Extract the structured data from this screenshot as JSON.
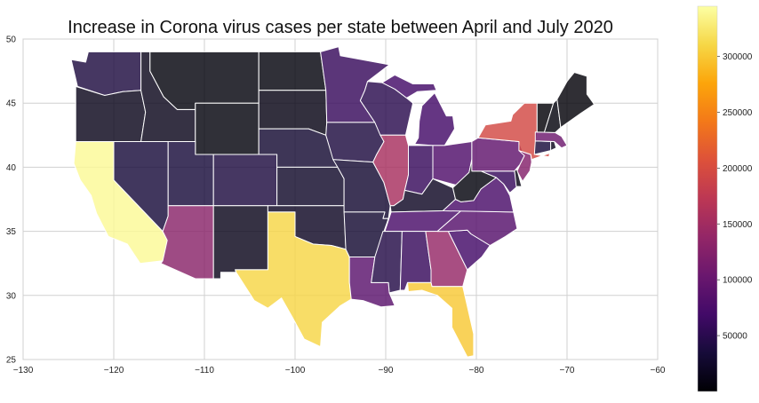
{
  "chart_data": {
    "type": "choropleth",
    "title": "Increase in Corona virus cases per state between April and July 2020",
    "x_range": [
      -130,
      -60
    ],
    "y_range": [
      25,
      50
    ],
    "x_ticks": [
      -130,
      -120,
      -110,
      -100,
      -90,
      -80,
      -70,
      -60
    ],
    "y_ticks": [
      25,
      30,
      35,
      40,
      45,
      50
    ],
    "grid": true,
    "colormap": "inferno",
    "colorbar": {
      "min": 0,
      "max": 345000,
      "ticks": [
        50000,
        100000,
        150000,
        200000,
        250000,
        300000
      ],
      "position": "right"
    },
    "states": [
      {
        "name": "WA",
        "value": 40000
      },
      {
        "name": "OR",
        "value": 15000
      },
      {
        "name": "CA",
        "value": 340000
      },
      {
        "name": "NV",
        "value": 35000
      },
      {
        "name": "ID",
        "value": 15000
      },
      {
        "name": "MT",
        "value": 5000
      },
      {
        "name": "WY",
        "value": 5000
      },
      {
        "name": "UT",
        "value": 35000
      },
      {
        "name": "AZ",
        "value": 130000
      },
      {
        "name": "CO",
        "value": 40000
      },
      {
        "name": "NM",
        "value": 15000
      },
      {
        "name": "ND",
        "value": 5000
      },
      {
        "name": "SD",
        "value": 10000
      },
      {
        "name": "NE",
        "value": 30000
      },
      {
        "name": "KS",
        "value": 25000
      },
      {
        "name": "OK",
        "value": 20000
      },
      {
        "name": "TX",
        "value": 310000
      },
      {
        "name": "MN",
        "value": 60000
      },
      {
        "name": "IA",
        "value": 40000
      },
      {
        "name": "MO",
        "value": 30000
      },
      {
        "name": "AR",
        "value": 30000
      },
      {
        "name": "LA",
        "value": 90000
      },
      {
        "name": "WI",
        "value": 50000
      },
      {
        "name": "IL",
        "value": 155000
      },
      {
        "name": "MI",
        "value": 70000
      },
      {
        "name": "IN",
        "value": 60000
      },
      {
        "name": "OH",
        "value": 80000
      },
      {
        "name": "KY",
        "value": 20000
      },
      {
        "name": "TN",
        "value": 75000
      },
      {
        "name": "MS",
        "value": 45000
      },
      {
        "name": "AL",
        "value": 60000
      },
      {
        "name": "GA",
        "value": 140000
      },
      {
        "name": "FL",
        "value": 300000
      },
      {
        "name": "SC",
        "value": 70000
      },
      {
        "name": "NC",
        "value": 85000
      },
      {
        "name": "VA",
        "value": 75000
      },
      {
        "name": "WV",
        "value": 5000
      },
      {
        "name": "PA",
        "value": 95000
      },
      {
        "name": "NY",
        "value": 195000
      },
      {
        "name": "NJ",
        "value": 125000
      },
      {
        "name": "MD",
        "value": 60000
      },
      {
        "name": "DE",
        "value": 10000
      },
      {
        "name": "CT",
        "value": 35000
      },
      {
        "name": "RI",
        "value": 15000
      },
      {
        "name": "MA",
        "value": 105000
      },
      {
        "name": "VT",
        "value": 1000
      },
      {
        "name": "NH",
        "value": 5000
      },
      {
        "name": "ME",
        "value": 3000
      }
    ]
  }
}
